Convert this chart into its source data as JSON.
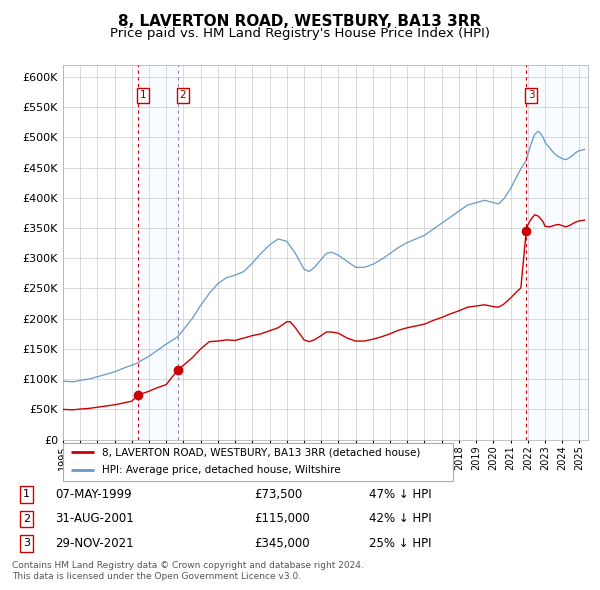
{
  "title": "8, LAVERTON ROAD, WESTBURY, BA13 3RR",
  "subtitle": "Price paid vs. HM Land Registry's House Price Index (HPI)",
  "legend_label_red": "8, LAVERTON ROAD, WESTBURY, BA13 3RR (detached house)",
  "legend_label_blue": "HPI: Average price, detached house, Wiltshire",
  "footer1": "Contains HM Land Registry data © Crown copyright and database right 2024.",
  "footer2": "This data is licensed under the Open Government Licence v3.0.",
  "transactions": [
    {
      "num": 1,
      "date": "07-MAY-1999",
      "price": 73500,
      "pct": "47%",
      "dir": "↓"
    },
    {
      "num": 2,
      "date": "31-AUG-2001",
      "price": 115000,
      "pct": "42%",
      "dir": "↓"
    },
    {
      "num": 3,
      "date": "29-NOV-2021",
      "price": 345000,
      "pct": "25%",
      "dir": "↓"
    }
  ],
  "sale_dates_decimal": [
    1999.35,
    2001.66,
    2021.91
  ],
  "sale_prices": [
    73500,
    115000,
    345000
  ],
  "ylim": [
    0,
    620000
  ],
  "yticks": [
    0,
    50000,
    100000,
    150000,
    200000,
    250000,
    300000,
    350000,
    400000,
    450000,
    500000,
    550000,
    600000
  ],
  "xlim_start": 1995.0,
  "xlim_end": 2025.5,
  "background_color": "#ffffff",
  "grid_color": "#cccccc",
  "red_color": "#cc0000",
  "blue_color": "#6699cc",
  "shade_color": "#ddeeff",
  "title_fontsize": 11,
  "subtitle_fontsize": 9.5,
  "hpi_keypoints": [
    [
      1995.0,
      97000
    ],
    [
      1995.3,
      96000
    ],
    [
      1995.6,
      95500
    ],
    [
      1996.0,
      98000
    ],
    [
      1996.5,
      100000
    ],
    [
      1997.0,
      104000
    ],
    [
      1997.5,
      108000
    ],
    [
      1998.0,
      112000
    ],
    [
      1998.5,
      118000
    ],
    [
      1999.0,
      123000
    ],
    [
      1999.35,
      127000
    ],
    [
      1999.5,
      130000
    ],
    [
      2000.0,
      138000
    ],
    [
      2000.5,
      148000
    ],
    [
      2001.0,
      158000
    ],
    [
      2001.66,
      170000
    ],
    [
      2002.0,
      182000
    ],
    [
      2002.5,
      200000
    ],
    [
      2003.0,
      222000
    ],
    [
      2003.5,
      242000
    ],
    [
      2004.0,
      258000
    ],
    [
      2004.5,
      268000
    ],
    [
      2005.0,
      272000
    ],
    [
      2005.5,
      278000
    ],
    [
      2006.0,
      292000
    ],
    [
      2006.5,
      308000
    ],
    [
      2007.0,
      322000
    ],
    [
      2007.5,
      332000
    ],
    [
      2008.0,
      328000
    ],
    [
      2008.5,
      308000
    ],
    [
      2009.0,
      282000
    ],
    [
      2009.3,
      278000
    ],
    [
      2009.6,
      285000
    ],
    [
      2010.0,
      298000
    ],
    [
      2010.3,
      308000
    ],
    [
      2010.6,
      310000
    ],
    [
      2011.0,
      305000
    ],
    [
      2011.5,
      295000
    ],
    [
      2012.0,
      285000
    ],
    [
      2012.5,
      285000
    ],
    [
      2013.0,
      290000
    ],
    [
      2013.5,
      298000
    ],
    [
      2014.0,
      308000
    ],
    [
      2014.5,
      318000
    ],
    [
      2015.0,
      326000
    ],
    [
      2015.5,
      332000
    ],
    [
      2016.0,
      338000
    ],
    [
      2016.5,
      348000
    ],
    [
      2017.0,
      358000
    ],
    [
      2017.5,
      368000
    ],
    [
      2018.0,
      378000
    ],
    [
      2018.5,
      388000
    ],
    [
      2019.0,
      392000
    ],
    [
      2019.5,
      396000
    ],
    [
      2020.0,
      392000
    ],
    [
      2020.3,
      390000
    ],
    [
      2020.6,
      398000
    ],
    [
      2021.0,
      415000
    ],
    [
      2021.3,
      432000
    ],
    [
      2021.6,
      448000
    ],
    [
      2021.91,
      462000
    ],
    [
      2022.0,
      472000
    ],
    [
      2022.2,
      490000
    ],
    [
      2022.4,
      505000
    ],
    [
      2022.6,
      510000
    ],
    [
      2022.7,
      508000
    ],
    [
      2022.9,
      500000
    ],
    [
      2023.0,
      492000
    ],
    [
      2023.2,
      485000
    ],
    [
      2023.4,
      478000
    ],
    [
      2023.6,
      472000
    ],
    [
      2023.8,
      468000
    ],
    [
      2024.0,
      465000
    ],
    [
      2024.2,
      463000
    ],
    [
      2024.4,
      466000
    ],
    [
      2024.6,
      470000
    ],
    [
      2024.8,
      475000
    ],
    [
      2025.0,
      478000
    ],
    [
      2025.3,
      480000
    ]
  ],
  "red_keypoints": [
    [
      1995.0,
      50000
    ],
    [
      1995.3,
      49500
    ],
    [
      1995.6,
      49200
    ],
    [
      1996.0,
      50500
    ],
    [
      1996.5,
      51500
    ],
    [
      1997.0,
      53500
    ],
    [
      1997.5,
      55500
    ],
    [
      1998.0,
      57500
    ],
    [
      1998.5,
      60500
    ],
    [
      1999.0,
      63500
    ],
    [
      1999.35,
      73500
    ],
    [
      2000.0,
      80000
    ],
    [
      2000.5,
      86000
    ],
    [
      2001.0,
      91000
    ],
    [
      2001.66,
      115000
    ],
    [
      2002.0,
      123000
    ],
    [
      2002.5,
      135000
    ],
    [
      2003.0,
      150000
    ],
    [
      2003.5,
      162000
    ],
    [
      2004.0,
      163000
    ],
    [
      2004.5,
      165000
    ],
    [
      2005.0,
      164000
    ],
    [
      2005.5,
      168000
    ],
    [
      2006.0,
      172000
    ],
    [
      2006.5,
      175000
    ],
    [
      2007.0,
      180000
    ],
    [
      2007.5,
      185000
    ],
    [
      2008.0,
      195000
    ],
    [
      2008.2,
      195000
    ],
    [
      2008.5,
      185000
    ],
    [
      2009.0,
      165000
    ],
    [
      2009.3,
      162000
    ],
    [
      2009.6,
      165000
    ],
    [
      2010.0,
      172000
    ],
    [
      2010.3,
      178000
    ],
    [
      2010.6,
      178000
    ],
    [
      2011.0,
      176000
    ],
    [
      2011.5,
      168000
    ],
    [
      2012.0,
      163000
    ],
    [
      2012.5,
      163000
    ],
    [
      2013.0,
      166000
    ],
    [
      2013.5,
      170000
    ],
    [
      2014.0,
      175000
    ],
    [
      2014.5,
      181000
    ],
    [
      2015.0,
      185000
    ],
    [
      2015.5,
      188000
    ],
    [
      2016.0,
      191000
    ],
    [
      2016.5,
      197000
    ],
    [
      2017.0,
      202000
    ],
    [
      2017.5,
      208000
    ],
    [
      2018.0,
      213000
    ],
    [
      2018.5,
      219000
    ],
    [
      2019.0,
      221000
    ],
    [
      2019.5,
      223000
    ],
    [
      2020.0,
      220000
    ],
    [
      2020.3,
      219000
    ],
    [
      2020.6,
      224000
    ],
    [
      2021.0,
      234000
    ],
    [
      2021.3,
      243000
    ],
    [
      2021.6,
      251000
    ],
    [
      2021.91,
      345000
    ],
    [
      2022.0,
      355000
    ],
    [
      2022.2,
      365000
    ],
    [
      2022.4,
      372000
    ],
    [
      2022.6,
      370000
    ],
    [
      2022.7,
      367000
    ],
    [
      2022.9,
      360000
    ],
    [
      2023.0,
      353000
    ],
    [
      2023.2,
      352000
    ],
    [
      2023.4,
      353000
    ],
    [
      2023.6,
      355000
    ],
    [
      2023.8,
      356000
    ],
    [
      2024.0,
      354000
    ],
    [
      2024.2,
      352000
    ],
    [
      2024.4,
      354000
    ],
    [
      2024.6,
      357000
    ],
    [
      2024.8,
      360000
    ],
    [
      2025.0,
      362000
    ],
    [
      2025.3,
      363000
    ]
  ]
}
